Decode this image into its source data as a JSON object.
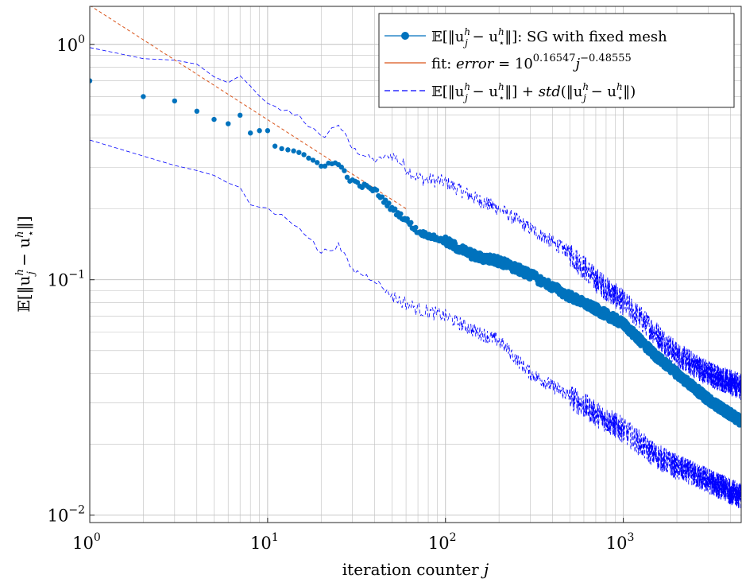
{
  "chart_data": {
    "type": "line",
    "title": "",
    "xlabel": "iteration counter j",
    "ylabel": "E[‖u_j^h − u_⋆^h‖]",
    "xscale": "log",
    "yscale": "log",
    "xlim": [
      1,
      4600
    ],
    "ylim": [
      0.0093,
      1.45
    ],
    "grid": true,
    "legend_position": "top-right",
    "x_ticks": [
      {
        "base": "10",
        "exp": "0",
        "value": 1
      },
      {
        "base": "10",
        "exp": "1",
        "value": 10
      },
      {
        "base": "10",
        "exp": "2",
        "value": 100
      },
      {
        "base": "10",
        "exp": "3",
        "value": 1000
      }
    ],
    "y_ticks": [
      {
        "base": "10",
        "exp": "−2",
        "value": 0.01
      },
      {
        "base": "10",
        "exp": "−1",
        "value": 0.1
      },
      {
        "base": "10",
        "exp": "0",
        "value": 1
      }
    ],
    "colors": {
      "mean": "#0072BD",
      "fit": "#D95319",
      "std": "#0000FF",
      "grid": "#BFBFBF",
      "axis": "#262626"
    },
    "series": [
      {
        "name": "E[‖u_j^h − u_⋆^h‖]: SG with fixed mesh",
        "style": "marker",
        "anchors_x": [
          1,
          2,
          3,
          4,
          5,
          6,
          7,
          8,
          9,
          10,
          11,
          13,
          15,
          20,
          25,
          30,
          40,
          50,
          60,
          70,
          100,
          150,
          200,
          300,
          500,
          700,
          1000,
          1500,
          2000,
          3000,
          4600
        ],
        "anchors_y": [
          0.7,
          0.6,
          0.575,
          0.52,
          0.48,
          0.46,
          0.5,
          0.42,
          0.43,
          0.43,
          0.37,
          0.36,
          0.34,
          0.31,
          0.31,
          0.26,
          0.24,
          0.2,
          0.18,
          0.16,
          0.145,
          0.125,
          0.12,
          0.105,
          0.085,
          0.075,
          0.065,
          0.048,
          0.04,
          0.031,
          0.025
        ]
      },
      {
        "name": "fit: error = 10^0.16547 j^−0.48555",
        "style": "dashed",
        "coef_log10": 0.16547,
        "exponent": -0.48555,
        "x_range": [
          1,
          60
        ]
      },
      {
        "name": "E[‖u_j^h − u_⋆^h‖] + std(‖u_j^h − u_⋆^h‖)",
        "style": "dashed",
        "anchors_x": [
          1,
          2,
          3,
          4,
          5,
          6,
          7,
          8,
          10,
          15,
          20,
          25,
          30,
          40,
          50,
          70,
          100,
          150,
          200,
          300,
          500,
          700,
          1000,
          1500,
          2000,
          3000,
          4600
        ],
        "anchors_y": [
          0.96,
          0.88,
          0.85,
          0.8,
          0.72,
          0.68,
          0.75,
          0.65,
          0.55,
          0.5,
          0.4,
          0.46,
          0.36,
          0.32,
          0.34,
          0.27,
          0.26,
          0.22,
          0.2,
          0.165,
          0.13,
          0.1,
          0.08,
          0.06,
          0.048,
          0.04,
          0.035
        ]
      },
      {
        "name": "E[‖u_j^h − u_⋆^h‖] − std (lower band)",
        "style": "dashed",
        "anchors_x": [
          1,
          2,
          3,
          4,
          5,
          6,
          7,
          8,
          10,
          15,
          20,
          25,
          30,
          40,
          50,
          70,
          100,
          150,
          200,
          300,
          500,
          700,
          1000,
          1500,
          2000,
          3000,
          4600
        ],
        "anchors_y": [
          0.4,
          0.33,
          0.31,
          0.29,
          0.27,
          0.26,
          0.24,
          0.21,
          0.2,
          0.17,
          0.13,
          0.14,
          0.11,
          0.1,
          0.085,
          0.075,
          0.07,
          0.06,
          0.055,
          0.04,
          0.032,
          0.027,
          0.023,
          0.018,
          0.016,
          0.014,
          0.012
        ]
      }
    ]
  },
  "legend": {
    "mean_prefix": "𝔼[‖u",
    "mean_suffix": "‖]: SG with fixed mesh",
    "fit_prefix": "fit: ",
    "fit_word": "error",
    "fit_mid": " = 10",
    "fit_exp1": "0.16547",
    "fit_j": "j",
    "fit_exp2": "−0.48555",
    "std_text1": "𝔼[‖u",
    "std_text2": "‖] + ",
    "std_word": "std",
    "std_text3": "(‖u",
    "std_text4": "‖)"
  },
  "labels": {
    "x_prefix": "iteration counter ",
    "x_var": "j",
    "y_text": "𝔼[‖u",
    "y_sub1": "j",
    "y_sup": "h",
    "y_mid": " − u",
    "y_sub2": "⋆",
    "y_end": "‖]"
  }
}
